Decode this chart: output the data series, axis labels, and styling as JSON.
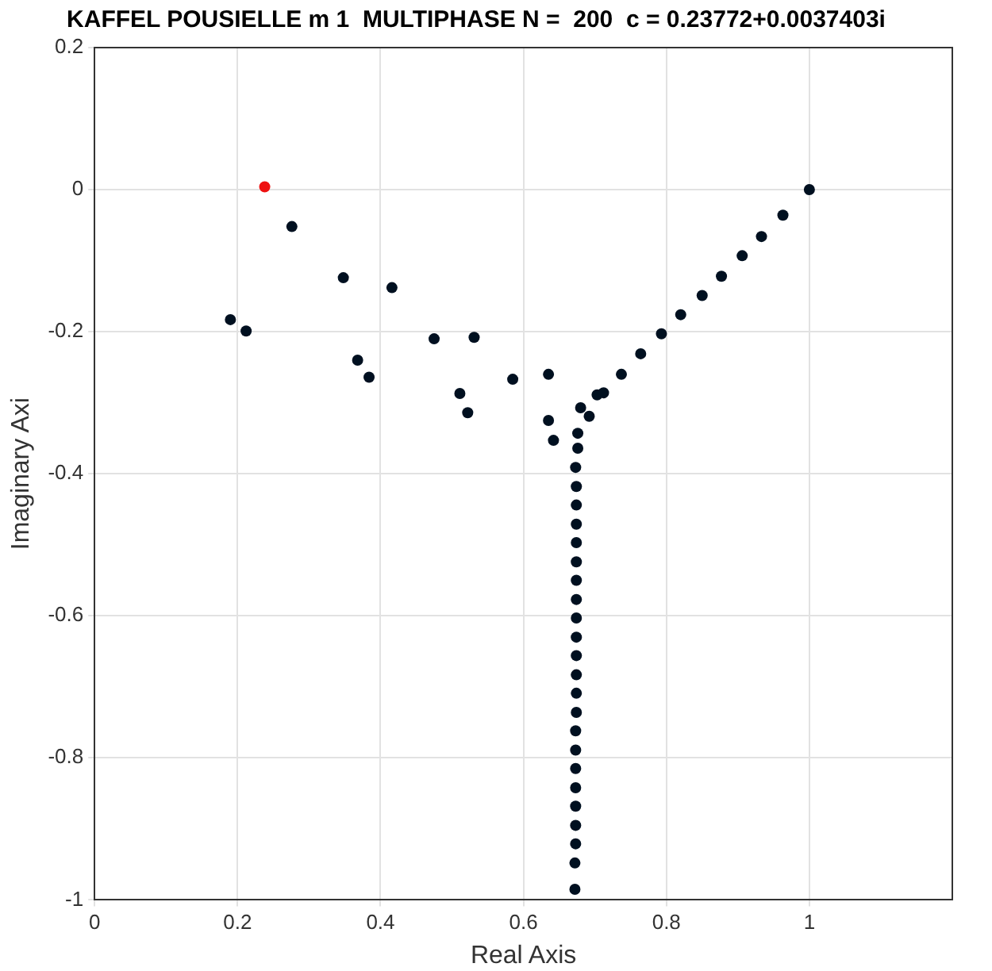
{
  "chart_data": {
    "type": "scatter",
    "title": "KAFFEL POUSIELLE m 1  MULTIPHASE N =  200  c = 0.23772+0.0037403i",
    "xlabel": "Real Axis",
    "ylabel": "Imaginary Axi",
    "xlim": [
      0,
      1.2
    ],
    "xticks": [
      0,
      0.2,
      0.4,
      0.6,
      0.8,
      1
    ],
    "ylim": [
      -1,
      0.2
    ],
    "yticks": [
      -1,
      -0.8,
      -0.6,
      -0.4,
      -0.2,
      0,
      0.2
    ],
    "grid": true,
    "legend": false,
    "marker": "circle",
    "series": [
      {
        "color": "#001020",
        "x": [
          0.276,
          0.348,
          0.416,
          0.19,
          0.212,
          0.368,
          0.384,
          0.475,
          0.531,
          0.511,
          0.522,
          0.585,
          0.635,
          0.635,
          0.642,
          0.68,
          0.692,
          0.676,
          0.676,
          0.673,
          1.0,
          0.963,
          0.933,
          0.906,
          0.877,
          0.85,
          0.82,
          0.793,
          0.764,
          0.737,
          0.703,
          0.712,
          0.674,
          0.674,
          0.674,
          0.674,
          0.674,
          0.674,
          0.674,
          0.674,
          0.674,
          0.674,
          0.674,
          0.674,
          0.674,
          0.673,
          0.673,
          0.673,
          0.673,
          0.673,
          0.673,
          0.673,
          0.672,
          0.672
        ],
        "values": [
          -0.052,
          -0.124,
          -0.138,
          -0.183,
          -0.199,
          -0.24,
          -0.264,
          -0.21,
          -0.208,
          -0.287,
          -0.314,
          -0.267,
          -0.26,
          -0.325,
          -0.353,
          -0.307,
          -0.319,
          -0.343,
          -0.364,
          -0.391,
          0,
          -0.036,
          -0.066,
          -0.093,
          -0.122,
          -0.149,
          -0.176,
          -0.203,
          -0.231,
          -0.26,
          -0.289,
          -0.286,
          -0.418,
          -0.444,
          -0.471,
          -0.497,
          -0.524,
          -0.55,
          -0.577,
          -0.603,
          -0.63,
          -0.656,
          -0.683,
          -0.709,
          -0.736,
          -0.762,
          -0.789,
          -0.815,
          -0.842,
          -0.868,
          -0.895,
          -0.921,
          -0.948,
          -0.985
        ]
      },
      {
        "color": "#ee1111",
        "x": [
          0.238
        ],
        "values": [
          0.004
        ]
      }
    ]
  }
}
